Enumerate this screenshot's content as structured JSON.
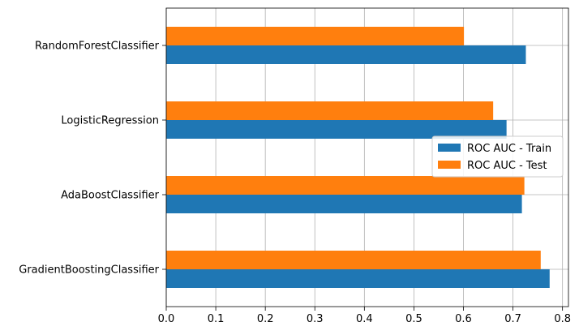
{
  "chart_data": {
    "type": "bar",
    "orientation": "horizontal",
    "categories": [
      "GradientBoostingClassifier",
      "AdaBoostClassifier",
      "LogisticRegression",
      "RandomForestClassifier"
    ],
    "series": [
      {
        "name": "ROC AUC - Train",
        "color": "#1f77b4",
        "values": [
          0.774,
          0.718,
          0.687,
          0.726
        ]
      },
      {
        "name": "ROC AUC - Test",
        "color": "#ff7f0e",
        "values": [
          0.756,
          0.723,
          0.66,
          0.601
        ]
      }
    ],
    "xticks": [
      "0.0",
      "0.1",
      "0.2",
      "0.3",
      "0.4",
      "0.5",
      "0.6",
      "0.7",
      "0.8"
    ],
    "xlim": [
      0,
      0.812
    ],
    "grid": true,
    "legend_position": "center-right",
    "title": "",
    "xlabel": "",
    "ylabel": ""
  }
}
